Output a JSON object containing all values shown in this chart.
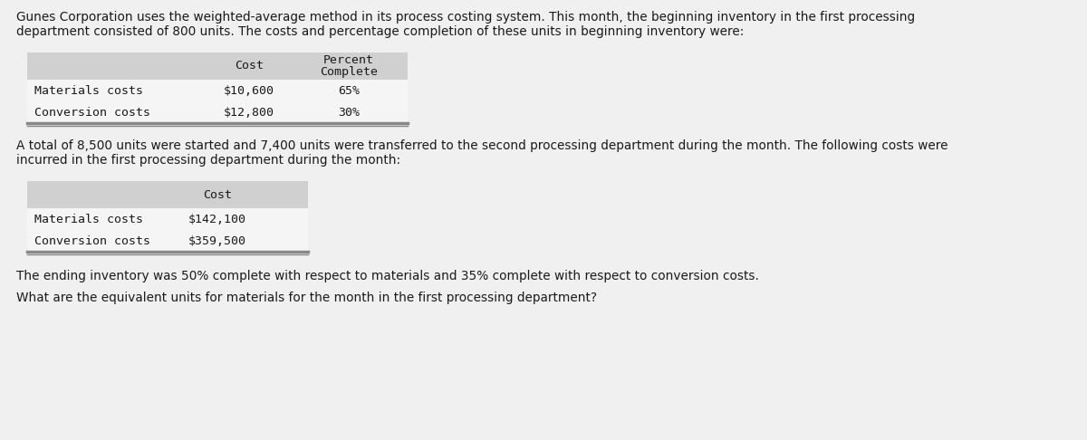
{
  "page_bg": "#f0f0f0",
  "table_header_bg": "#d0d0d0",
  "table_row_bg": "#f5f5f5",
  "table_bottom_line_color": "#999999",
  "intro_text_line1": "Gunes Corporation uses the weighted-average method in its process costing system. This month, the beginning inventory in the first processing",
  "intro_text_line2": "department consisted of 800 units. The costs and percentage completion of these units in beginning inventory were:",
  "table1_header_col1": "",
  "table1_header_col2": "Cost",
  "table1_header_col3_line1": "Percent",
  "table1_header_col3_line2": "Complete",
  "table1_rows": [
    [
      "Materials costs",
      "$10,600",
      "65%"
    ],
    [
      "Conversion costs",
      "$12,800",
      "30%"
    ]
  ],
  "middle_text_line1": "A total of 8,500 units were started and 7,400 units were transferred to the second processing department during the month. The following costs were",
  "middle_text_line2": "incurred in the first processing department during the month:",
  "table2_header_col1": "",
  "table2_header_col2": "Cost",
  "table2_rows": [
    [
      "Materials costs",
      "$142,100"
    ],
    [
      "Conversion costs",
      "$359,500"
    ]
  ],
  "ending_text": "The ending inventory was 50% complete with respect to materials and 35% complete with respect to conversion costs.",
  "question_text": "What are the equivalent units for materials for the month in the first processing department?",
  "text_color": "#1a1a1a",
  "font_size_body": 9.8,
  "font_size_table": 9.5
}
